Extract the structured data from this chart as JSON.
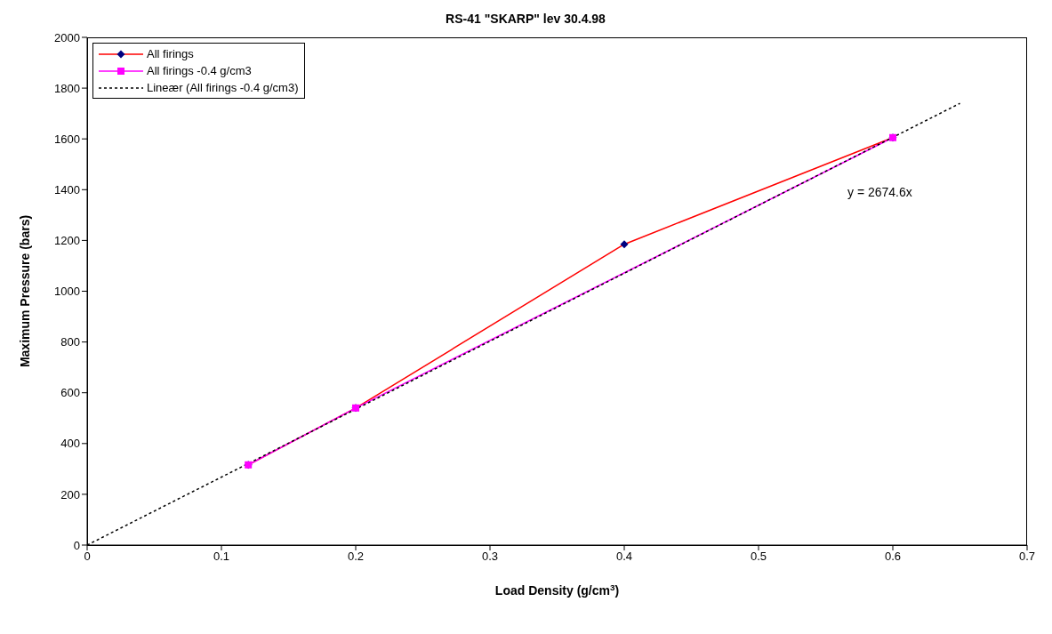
{
  "chart_data": {
    "type": "line",
    "title": "RS-41 \"SKARP\" lev 30.4.98",
    "xlabel": "Load Density (g/cm$^{3}$)",
    "ylabel": "Maximum Pressure (bars)",
    "xlim": [
      0,
      0.7
    ],
    "xticks": [
      0,
      0.1,
      0.2,
      0.3,
      0.4,
      0.5,
      0.6,
      0.7
    ],
    "ylim": [
      0,
      2000
    ],
    "yticks": [
      0,
      200,
      400,
      600,
      800,
      1000,
      1200,
      1400,
      1600,
      1800,
      2000
    ],
    "grid": false,
    "legend": "top left",
    "series": [
      {
        "name": "All firings",
        "color": "#ff0000",
        "colors": [
          "#000080",
          "#000080",
          "#000080",
          "#000080"
        ],
        "marker": "diamond",
        "line_style": "solid",
        "x": [
          0.12,
          0.2,
          0.4,
          0.6
        ],
        "values": [
          316,
          540,
          1185,
          1605
        ]
      },
      {
        "name": "All firings -0.4 g/cm3",
        "color": "#ff00ff",
        "marker": "square",
        "line_style": "solid",
        "x": [
          0.12,
          0.2,
          0.6
        ],
        "values": [
          316,
          540,
          1605
        ]
      },
      {
        "name": "Lineær (All firings -0.4 g/cm3)",
        "color": "#000000",
        "marker": "none",
        "line_style": "dotted",
        "x": [
          0,
          0.65
        ],
        "values": [
          0,
          1740
        ]
      }
    ],
    "annotations": [
      "y = 2674.6x"
    ]
  }
}
